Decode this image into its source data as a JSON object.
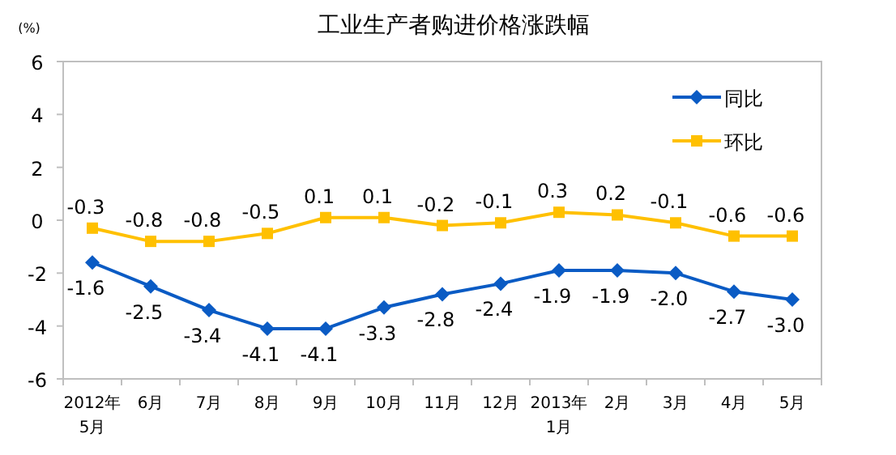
{
  "chart_data": {
    "type": "line",
    "title": "工业生产者购进价格涨跌幅",
    "ylabel": "(%)",
    "categories": [
      "2012年\n5月",
      "6月",
      "7月",
      "8月",
      "9月",
      "10月",
      "11月",
      "12月",
      "2013年\n1月",
      "2月",
      "3月",
      "4月",
      "5月"
    ],
    "series": [
      {
        "name": "同比",
        "color": "#0a5bc4",
        "marker": "diamond",
        "values": [
          -1.6,
          -2.5,
          -3.4,
          -4.1,
          -4.1,
          -3.3,
          -2.8,
          -2.4,
          -1.9,
          -1.9,
          -2.0,
          -2.7,
          -3.0
        ],
        "value_labels": [
          "-1.6",
          "-2.5",
          "-3.4",
          "-4.1",
          "-4.1",
          "-3.3",
          "-2.8",
          "-2.4",
          "-1.9",
          "-1.9",
          "-2.0",
          "-2.7",
          "-3.0"
        ]
      },
      {
        "name": "环比",
        "color": "#ffc000",
        "marker": "square",
        "values": [
          -0.3,
          -0.8,
          -0.8,
          -0.5,
          0.1,
          0.1,
          -0.2,
          -0.1,
          0.3,
          0.2,
          -0.1,
          -0.6,
          -0.6
        ],
        "value_labels": [
          "-0.3",
          "-0.8",
          "-0.8",
          "-0.5",
          "0.1",
          "0.1",
          "-0.2",
          "-0.1",
          "0.3",
          "0.2",
          "-0.1",
          "-0.6",
          "-0.6"
        ]
      }
    ],
    "ylim": [
      -6,
      6
    ],
    "yticks": [
      -6,
      -4,
      -2,
      0,
      2,
      4,
      6
    ],
    "grid": false,
    "legend": "top right",
    "line_style": "solid"
  }
}
